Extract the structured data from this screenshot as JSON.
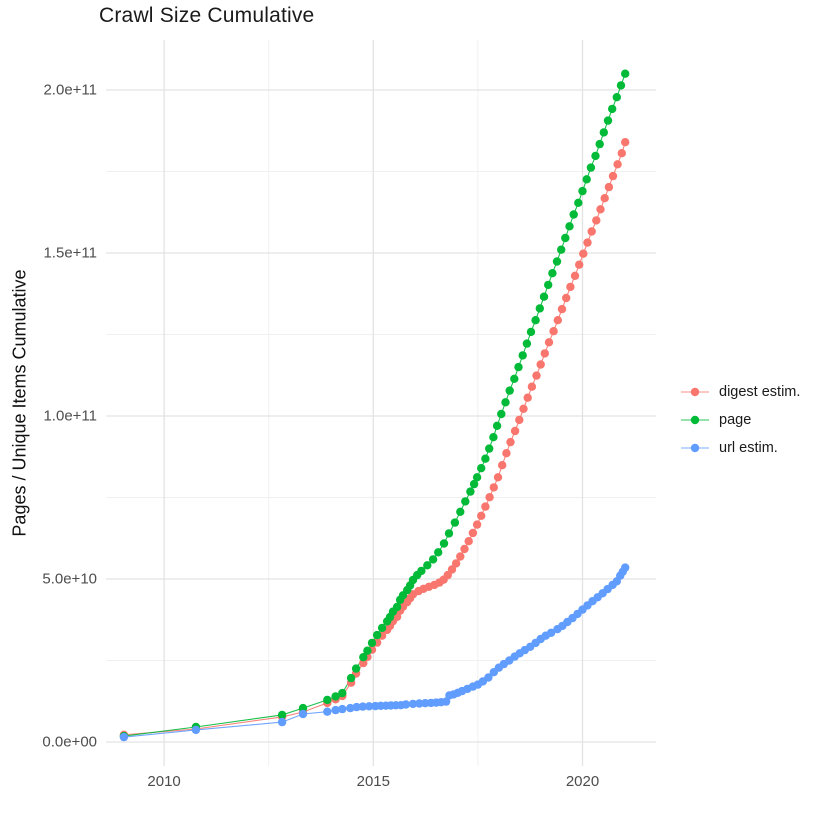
{
  "chart": {
    "title": "Crawl Size Cumulative",
    "y_axis_title": "Pages / Unique Items Cumulative"
  },
  "colors": {
    "background": "#ffffff",
    "grid_major": "#e3e3e3",
    "grid_minor": "#f0f0f0",
    "axis_text": "#4d4d4d",
    "title_text": "#1a1a1a"
  },
  "chart_data": {
    "type": "line",
    "title": "Crawl Size Cumulative",
    "xlabel": "",
    "ylabel": "Pages / Unique Items Cumulative",
    "grid": true,
    "legend_position": "right",
    "marker": "point",
    "value_unit": "billions (1e9 items)",
    "x_domain": [
      2008.6,
      2021.8
    ],
    "y_domain_billions": [
      -8,
      215
    ],
    "x_ticks": {
      "values": [
        2010,
        2015,
        2020
      ],
      "labels": [
        "2010",
        "2015",
        "2020"
      ],
      "minor": [
        2012.5,
        2017.5
      ]
    },
    "y_ticks": {
      "values_billions": [
        0,
        50,
        100,
        150,
        200
      ],
      "labels": [
        "0.0e+00",
        "5.0e+10",
        "1.0e+11",
        "1.5e+11",
        "2.0e+11"
      ],
      "minor_billions": [
        25,
        75,
        125,
        175
      ]
    },
    "series": [
      {
        "name": "digest estim.",
        "color": "#F8766D",
        "points": [
          [
            2009.04,
            2.2
          ],
          [
            2010.76,
            4.0
          ],
          [
            2012.82,
            7.7
          ],
          [
            2013.32,
            9.2
          ],
          [
            2013.9,
            12.0
          ],
          [
            2014.1,
            13.1
          ],
          [
            2014.26,
            14.1
          ],
          [
            2014.47,
            18.2
          ],
          [
            2014.59,
            21.0
          ],
          [
            2014.76,
            24.2
          ],
          [
            2014.86,
            26.1
          ],
          [
            2014.97,
            28.3
          ],
          [
            2015.09,
            30.5
          ],
          [
            2015.21,
            32.6
          ],
          [
            2015.33,
            34.4
          ],
          [
            2015.4,
            35.6
          ],
          [
            2015.47,
            37.1
          ],
          [
            2015.57,
            38.4
          ],
          [
            2015.64,
            40.3
          ],
          [
            2015.71,
            41.5
          ],
          [
            2015.81,
            42.9
          ],
          [
            2015.88,
            44.1
          ],
          [
            2015.95,
            45.3
          ],
          [
            2016.08,
            46.3
          ],
          [
            2016.2,
            47.0
          ],
          [
            2016.33,
            47.6
          ],
          [
            2016.46,
            48.2
          ],
          [
            2016.58,
            48.9
          ],
          [
            2016.68,
            49.8
          ],
          [
            2016.78,
            51.2
          ],
          [
            2016.88,
            52.9
          ],
          [
            2016.98,
            54.8
          ],
          [
            2017.08,
            56.9
          ],
          [
            2017.18,
            59.2
          ],
          [
            2017.28,
            61.6
          ],
          [
            2017.38,
            64.1
          ],
          [
            2017.48,
            66.7
          ],
          [
            2017.58,
            69.4
          ],
          [
            2017.68,
            72.2
          ],
          [
            2017.78,
            75.1
          ],
          [
            2017.88,
            78.1
          ],
          [
            2017.98,
            81.2
          ],
          [
            2018.08,
            84.9
          ],
          [
            2018.18,
            88.6
          ],
          [
            2018.28,
            92.0
          ],
          [
            2018.39,
            95.4
          ],
          [
            2018.49,
            98.8
          ],
          [
            2018.59,
            102.2
          ],
          [
            2018.69,
            105.6
          ],
          [
            2018.79,
            109.0
          ],
          [
            2018.9,
            112.4
          ],
          [
            2019.0,
            115.8
          ],
          [
            2019.1,
            119.2
          ],
          [
            2019.2,
            122.6
          ],
          [
            2019.31,
            126.0
          ],
          [
            2019.41,
            129.4
          ],
          [
            2019.51,
            132.8
          ],
          [
            2019.61,
            136.2
          ],
          [
            2019.71,
            139.6
          ],
          [
            2019.82,
            143.0
          ],
          [
            2019.92,
            146.4
          ],
          [
            2020.02,
            149.8
          ],
          [
            2020.12,
            153.2
          ],
          [
            2020.22,
            156.6
          ],
          [
            2020.33,
            160.0
          ],
          [
            2020.43,
            163.4
          ],
          [
            2020.53,
            166.8
          ],
          [
            2020.63,
            170.2
          ],
          [
            2020.73,
            173.6
          ],
          [
            2020.84,
            177.2
          ],
          [
            2020.94,
            180.6
          ],
          [
            2021.02,
            184.0
          ]
        ]
      },
      {
        "name": "page",
        "color": "#00BA38",
        "points": [
          [
            2009.04,
            1.8
          ],
          [
            2010.76,
            4.6
          ],
          [
            2012.82,
            8.3
          ],
          [
            2013.32,
            10.4
          ],
          [
            2013.9,
            12.9
          ],
          [
            2014.1,
            14.0
          ],
          [
            2014.26,
            15.0
          ],
          [
            2014.47,
            19.6
          ],
          [
            2014.59,
            22.5
          ],
          [
            2014.76,
            26.0
          ],
          [
            2014.86,
            28.0
          ],
          [
            2014.97,
            30.4
          ],
          [
            2015.09,
            32.8
          ],
          [
            2015.21,
            35.0
          ],
          [
            2015.33,
            37.0
          ],
          [
            2015.4,
            38.3
          ],
          [
            2015.47,
            40.0
          ],
          [
            2015.57,
            41.4
          ],
          [
            2015.64,
            43.6
          ],
          [
            2015.71,
            45.0
          ],
          [
            2015.81,
            46.6
          ],
          [
            2015.88,
            48.0
          ],
          [
            2015.95,
            49.7
          ],
          [
            2016.05,
            51.2
          ],
          [
            2016.15,
            52.5
          ],
          [
            2016.29,
            54.2
          ],
          [
            2016.43,
            56.0
          ],
          [
            2016.55,
            58.2
          ],
          [
            2016.69,
            60.9
          ],
          [
            2016.81,
            64.0
          ],
          [
            2016.95,
            67.3
          ],
          [
            2017.08,
            70.6
          ],
          [
            2017.2,
            73.8
          ],
          [
            2017.32,
            76.8
          ],
          [
            2017.41,
            79.1
          ],
          [
            2017.48,
            81.2
          ],
          [
            2017.58,
            84.0
          ],
          [
            2017.68,
            86.9
          ],
          [
            2017.77,
            90.0
          ],
          [
            2017.87,
            93.5
          ],
          [
            2017.96,
            97.0
          ],
          [
            2018.06,
            100.6
          ],
          [
            2018.16,
            104.2
          ],
          [
            2018.26,
            107.8
          ],
          [
            2018.37,
            111.4
          ],
          [
            2018.47,
            115.0
          ],
          [
            2018.57,
            118.6
          ],
          [
            2018.67,
            122.2
          ],
          [
            2018.77,
            125.8
          ],
          [
            2018.88,
            129.4
          ],
          [
            2018.98,
            133.0
          ],
          [
            2019.08,
            136.6
          ],
          [
            2019.18,
            140.2
          ],
          [
            2019.28,
            143.8
          ],
          [
            2019.39,
            147.4
          ],
          [
            2019.49,
            151.0
          ],
          [
            2019.59,
            154.6
          ],
          [
            2019.69,
            158.2
          ],
          [
            2019.79,
            161.8
          ],
          [
            2019.9,
            165.4
          ],
          [
            2020.0,
            169.0
          ],
          [
            2020.1,
            172.6
          ],
          [
            2020.2,
            176.2
          ],
          [
            2020.31,
            179.8
          ],
          [
            2020.41,
            183.4
          ],
          [
            2020.51,
            187.0
          ],
          [
            2020.61,
            190.6
          ],
          [
            2020.71,
            194.2
          ],
          [
            2020.82,
            197.8
          ],
          [
            2020.92,
            201.4
          ],
          [
            2021.02,
            205.0
          ]
        ]
      },
      {
        "name": "url estim.",
        "color": "#619CFF",
        "points": [
          [
            2009.04,
            1.5
          ],
          [
            2010.76,
            3.7
          ],
          [
            2012.82,
            6.1
          ],
          [
            2013.32,
            8.6
          ],
          [
            2013.9,
            9.3
          ],
          [
            2014.1,
            9.8
          ],
          [
            2014.26,
            10.1
          ],
          [
            2014.45,
            10.4
          ],
          [
            2014.6,
            10.7
          ],
          [
            2014.75,
            10.85
          ],
          [
            2014.9,
            10.95
          ],
          [
            2015.05,
            11.0
          ],
          [
            2015.18,
            11.1
          ],
          [
            2015.3,
            11.15
          ],
          [
            2015.42,
            11.2
          ],
          [
            2015.54,
            11.25
          ],
          [
            2015.66,
            11.3
          ],
          [
            2015.78,
            11.5
          ],
          [
            2015.95,
            11.7
          ],
          [
            2016.1,
            11.8
          ],
          [
            2016.24,
            11.9
          ],
          [
            2016.38,
            12.0
          ],
          [
            2016.5,
            12.1
          ],
          [
            2016.62,
            12.2
          ],
          [
            2016.74,
            12.4
          ],
          [
            2016.82,
            14.3
          ],
          [
            2016.92,
            14.6
          ],
          [
            2017.02,
            15.1
          ],
          [
            2017.12,
            15.6
          ],
          [
            2017.25,
            16.3
          ],
          [
            2017.38,
            17.0
          ],
          [
            2017.5,
            17.6
          ],
          [
            2017.62,
            18.6
          ],
          [
            2017.75,
            19.8
          ],
          [
            2017.88,
            21.4
          ],
          [
            2018.0,
            22.8
          ],
          [
            2018.12,
            23.9
          ],
          [
            2018.25,
            25.0
          ],
          [
            2018.38,
            26.2
          ],
          [
            2018.5,
            27.2
          ],
          [
            2018.62,
            28.2
          ],
          [
            2018.75,
            29.2
          ],
          [
            2018.88,
            30.4
          ],
          [
            2019.0,
            31.6
          ],
          [
            2019.12,
            32.6
          ],
          [
            2019.25,
            33.5
          ],
          [
            2019.4,
            34.6
          ],
          [
            2019.52,
            35.6
          ],
          [
            2019.64,
            36.8
          ],
          [
            2019.76,
            38.0
          ],
          [
            2019.88,
            39.3
          ],
          [
            2020.0,
            40.6
          ],
          [
            2020.12,
            41.9
          ],
          [
            2020.24,
            43.2
          ],
          [
            2020.36,
            44.4
          ],
          [
            2020.48,
            45.6
          ],
          [
            2020.6,
            46.9
          ],
          [
            2020.72,
            48.2
          ],
          [
            2020.82,
            49.3
          ],
          [
            2020.9,
            51.0
          ],
          [
            2020.96,
            52.2
          ],
          [
            2021.02,
            53.5
          ]
        ]
      }
    ]
  }
}
